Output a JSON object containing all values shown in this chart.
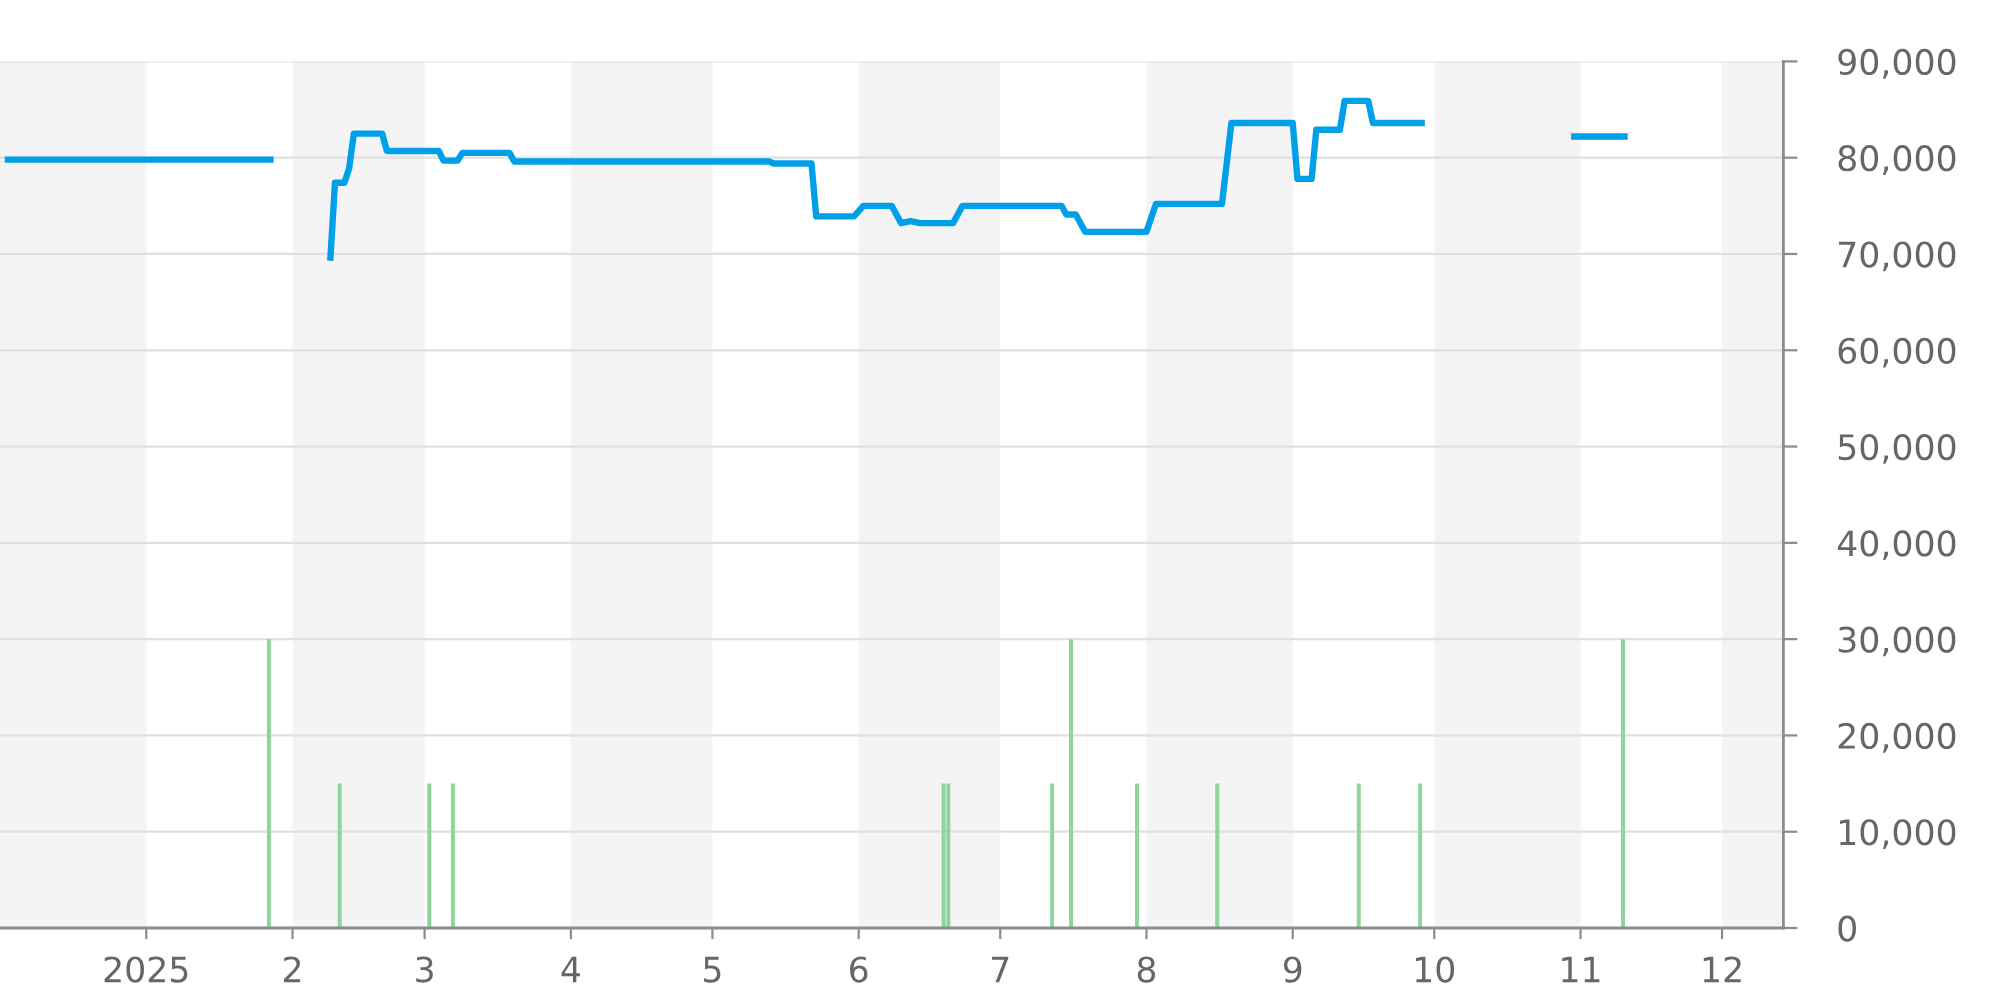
{
  "chart_data": {
    "type": "line",
    "xlim": [
      "2024-12-01",
      "2025-12-14"
    ],
    "xticks": [
      {
        "value": "2025-01-01",
        "label": "2025"
      },
      {
        "value": "2025-02-01",
        "label": "2"
      },
      {
        "value": "2025-03-01",
        "label": "3"
      },
      {
        "value": "2025-04-01",
        "label": "4"
      },
      {
        "value": "2025-05-01",
        "label": "5"
      },
      {
        "value": "2025-06-01",
        "label": "6"
      },
      {
        "value": "2025-07-01",
        "label": "7"
      },
      {
        "value": "2025-08-01",
        "label": "8"
      },
      {
        "value": "2025-09-01",
        "label": "9"
      },
      {
        "value": "2025-10-01",
        "label": "10"
      },
      {
        "value": "2025-11-01",
        "label": "11"
      },
      {
        "value": "2025-12-01",
        "label": "12"
      }
    ],
    "ylim": [
      0,
      90000
    ],
    "yticks": [
      0,
      {
        "value": 10000,
        "label": "10,000"
      },
      {
        "value": 20000,
        "label": "20,000"
      },
      {
        "value": 30000,
        "label": "30,000"
      },
      {
        "value": 40000,
        "label": "40,000"
      },
      {
        "value": 50000,
        "label": "50,000"
      },
      {
        "value": 60000,
        "label": "60,000"
      },
      {
        "value": 70000,
        "label": "70,000"
      },
      {
        "value": 80000,
        "label": "80,000"
      },
      {
        "value": 90000,
        "label": "90,000"
      }
    ],
    "grid": "y",
    "bands": [
      {
        "axis": "x",
        "from": "2024-12-01",
        "to": "2025-01-01",
        "color": "#f4f4f4"
      },
      {
        "axis": "x",
        "from": "2025-02-01",
        "to": "2025-03-01",
        "color": "#f4f4f4"
      },
      {
        "axis": "x",
        "from": "2025-04-01",
        "to": "2025-05-01",
        "color": "#f4f4f4"
      },
      {
        "axis": "x",
        "from": "2025-06-01",
        "to": "2025-07-01",
        "color": "#f4f4f4"
      },
      {
        "axis": "x",
        "from": "2025-08-01",
        "to": "2025-09-01",
        "color": "#f4f4f4"
      },
      {
        "axis": "x",
        "from": "2025-10-01",
        "to": "2025-11-01",
        "color": "#f4f4f4"
      },
      {
        "axis": "x",
        "from": "2025-12-01",
        "to": "2025-12-14",
        "color": "#f4f4f4"
      }
    ],
    "series": [
      {
        "type": "bar",
        "color": "#8fd49c",
        "x": [
          "2025-01-27",
          "2025-02-11",
          "2025-03-02",
          "2025-03-07",
          "2025-06-19",
          "2025-06-20",
          "2025-07-12",
          "2025-07-16",
          "2025-07-30",
          "2025-08-16",
          "2025-09-15",
          "2025-09-28",
          "2025-11-10"
        ],
        "values": [
          30000,
          15000,
          15000,
          15000,
          15000,
          15000,
          15000,
          30000,
          15000,
          15000,
          15000,
          15000,
          30000
        ]
      },
      {
        "color": "#00a0e9",
        "x": [
          "2024-12-02",
          "2025-01-28",
          "2025-02-01",
          "2025-02-09",
          "2025-02-10",
          "2025-02-12",
          "2025-02-13",
          "2025-02-14",
          "2025-02-20",
          "2025-02-21",
          "2025-03-04",
          "2025-03-05",
          "2025-03-08",
          "2025-03-09",
          "2025-03-19",
          "2025-03-20",
          "2025-05-13",
          "2025-05-14",
          "2025-05-22",
          "2025-05-23",
          "2025-05-31",
          "2025-06-02",
          "2025-06-08",
          "2025-06-10",
          "2025-06-12",
          "2025-06-14",
          "2025-06-21",
          "2025-06-23",
          "2025-07-14",
          "2025-07-15",
          "2025-07-17",
          "2025-07-19",
          "2025-08-01",
          "2025-08-03",
          "2025-08-17",
          "2025-08-19",
          "2025-09-01",
          "2025-09-02",
          "2025-09-05",
          "2025-09-06",
          "2025-09-11",
          "2025-09-12",
          "2025-09-17",
          "2025-09-18",
          "2025-09-29",
          "2025-10-15",
          "2025-10-30",
          "2025-11-11"
        ],
        "values": [
          79800,
          79800,
          null,
          69300,
          77400,
          77400,
          78900,
          82500,
          82500,
          80700,
          80700,
          79700,
          79700,
          80500,
          80500,
          79600,
          79600,
          79400,
          79400,
          73900,
          73900,
          75000,
          75000,
          73200,
          73400,
          73200,
          73200,
          75000,
          75000,
          74100,
          74100,
          72300,
          72300,
          75200,
          75200,
          83600,
          83600,
          77800,
          77800,
          82900,
          82900,
          85900,
          85900,
          83600,
          83600,
          null,
          82200,
          82200
        ]
      }
    ]
  }
}
